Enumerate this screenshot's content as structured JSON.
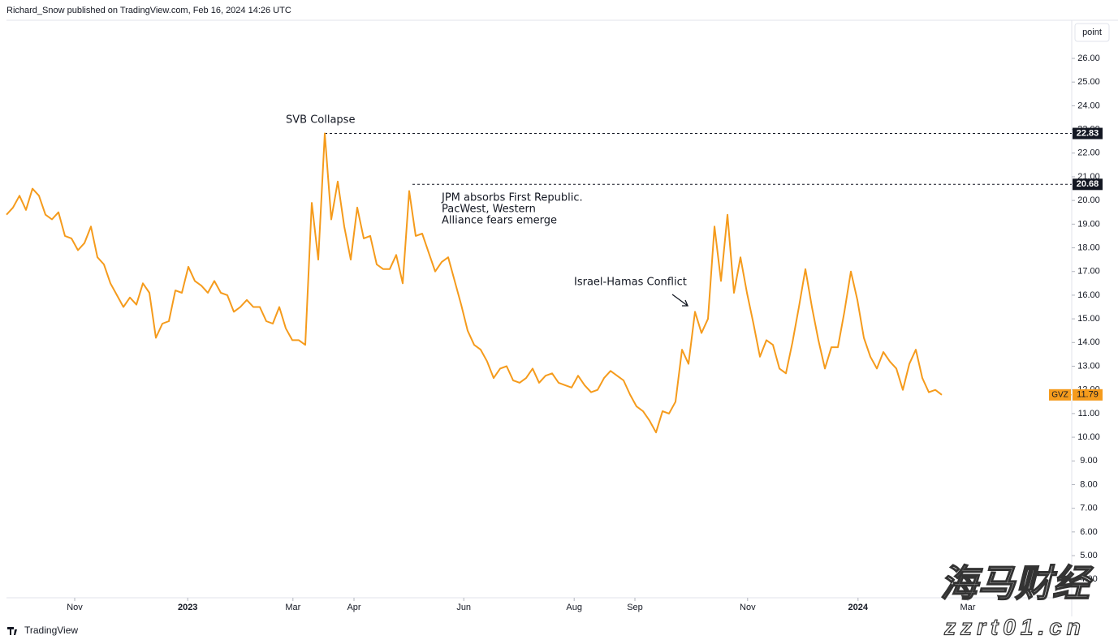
{
  "header": "Richard_Snow published on TradingView.com, Feb 16, 2024 14:26 UTC",
  "scale_button": "point",
  "footer": "TradingView",
  "watermark": [
    "海马财经",
    "zzrt01.cn"
  ],
  "chart_data": {
    "type": "line",
    "series": [
      {
        "name": "GVZ",
        "color": "#f59b1c",
        "last_value": 11.79,
        "values": [
          19.4,
          19.7,
          20.2,
          19.6,
          20.5,
          20.2,
          19.4,
          19.2,
          19.5,
          18.5,
          18.4,
          17.9,
          18.2,
          18.9,
          17.6,
          17.3,
          16.5,
          16.0,
          15.5,
          15.9,
          15.6,
          16.5,
          16.1,
          14.2,
          14.8,
          14.9,
          16.2,
          16.1,
          17.2,
          16.6,
          16.4,
          16.1,
          16.6,
          16.1,
          16.0,
          15.3,
          15.5,
          15.8,
          15.5,
          15.5,
          14.9,
          14.8,
          15.5,
          14.6,
          14.1,
          14.1,
          13.9,
          19.9,
          17.5,
          22.83,
          19.2,
          20.8,
          18.9,
          17.5,
          19.7,
          18.4,
          18.5,
          17.3,
          17.1,
          17.1,
          17.7,
          16.5,
          20.4,
          18.5,
          18.6,
          17.8,
          17.0,
          17.4,
          17.6,
          16.6,
          15.6,
          14.5,
          13.9,
          13.7,
          13.2,
          12.5,
          12.9,
          13.0,
          12.4,
          12.3,
          12.5,
          12.9,
          12.3,
          12.6,
          12.7,
          12.3,
          12.2,
          12.1,
          12.6,
          12.2,
          11.9,
          12.0,
          12.5,
          12.8,
          12.6,
          12.4,
          11.8,
          11.3,
          11.1,
          10.7,
          10.2,
          11.1,
          11.0,
          11.5,
          13.7,
          13.1,
          15.3,
          14.4,
          15.0,
          18.9,
          16.6,
          19.4,
          16.1,
          17.6,
          16.1,
          14.8,
          13.4,
          14.1,
          13.9,
          12.9,
          12.7,
          14.0,
          15.5,
          17.1,
          15.5,
          14.1,
          12.9,
          13.8,
          13.8,
          15.3,
          17.0,
          15.8,
          14.2,
          13.4,
          12.9,
          13.6,
          13.2,
          12.9,
          12.0,
          13.1,
          13.7,
          12.5,
          11.9,
          12.0,
          11.79
        ]
      }
    ],
    "xlim": [
      0,
      164
    ],
    "xticks": [
      {
        "value": 10.5,
        "label": "Nov"
      },
      {
        "value": 27.9,
        "label": "2023"
      },
      {
        "value": 44.1,
        "label": "Mar"
      },
      {
        "value": 53.5,
        "label": "Apr"
      },
      {
        "value": 70.4,
        "label": "Jun"
      },
      {
        "value": 87.4,
        "label": "Aug"
      },
      {
        "value": 96.75,
        "label": "Sep"
      },
      {
        "value": 114.1,
        "label": "Nov"
      },
      {
        "value": 131.1,
        "label": "2024"
      },
      {
        "value": 148,
        "label": "Mar"
      }
    ],
    "ylim": [
      3.22,
      27.61
    ],
    "yticks": [
      {
        "value": 4,
        "label": "4.00"
      },
      {
        "value": 5,
        "label": "5.00"
      },
      {
        "value": 6,
        "label": "6.00"
      },
      {
        "value": 7,
        "label": "7.00"
      },
      {
        "value": 8,
        "label": "8.00"
      },
      {
        "value": 9,
        "label": "9.00"
      },
      {
        "value": 10,
        "label": "10.00"
      },
      {
        "value": 11,
        "label": "11.00"
      },
      {
        "value": 12,
        "label": "12.00"
      },
      {
        "value": 13,
        "label": "13.00"
      },
      {
        "value": 14,
        "label": "14.00"
      },
      {
        "value": 15,
        "label": "15.00"
      },
      {
        "value": 16,
        "label": "16.00"
      },
      {
        "value": 17,
        "label": "17.00"
      },
      {
        "value": 18,
        "label": "18.00"
      },
      {
        "value": 19,
        "label": "19.00"
      },
      {
        "value": 20,
        "label": "20.00"
      },
      {
        "value": 21,
        "label": "21.00"
      },
      {
        "value": 22,
        "label": "22.00"
      },
      {
        "value": 23,
        "label": "23.00"
      },
      {
        "value": 24,
        "label": "24.00"
      },
      {
        "value": 25,
        "label": "25.00"
      },
      {
        "value": 26,
        "label": "26.00"
      }
    ],
    "levels": [
      22.83,
      20.68
    ],
    "annotations": [
      {
        "lines": [
          "SVB Collapse"
        ]
      },
      {
        "lines": [
          "JPM absorbs First Republic.",
          "PacWest, Western",
          "Alliance fears emerge"
        ]
      },
      {
        "lines": [
          "Israel-Hamas Conflict"
        ]
      }
    ]
  }
}
